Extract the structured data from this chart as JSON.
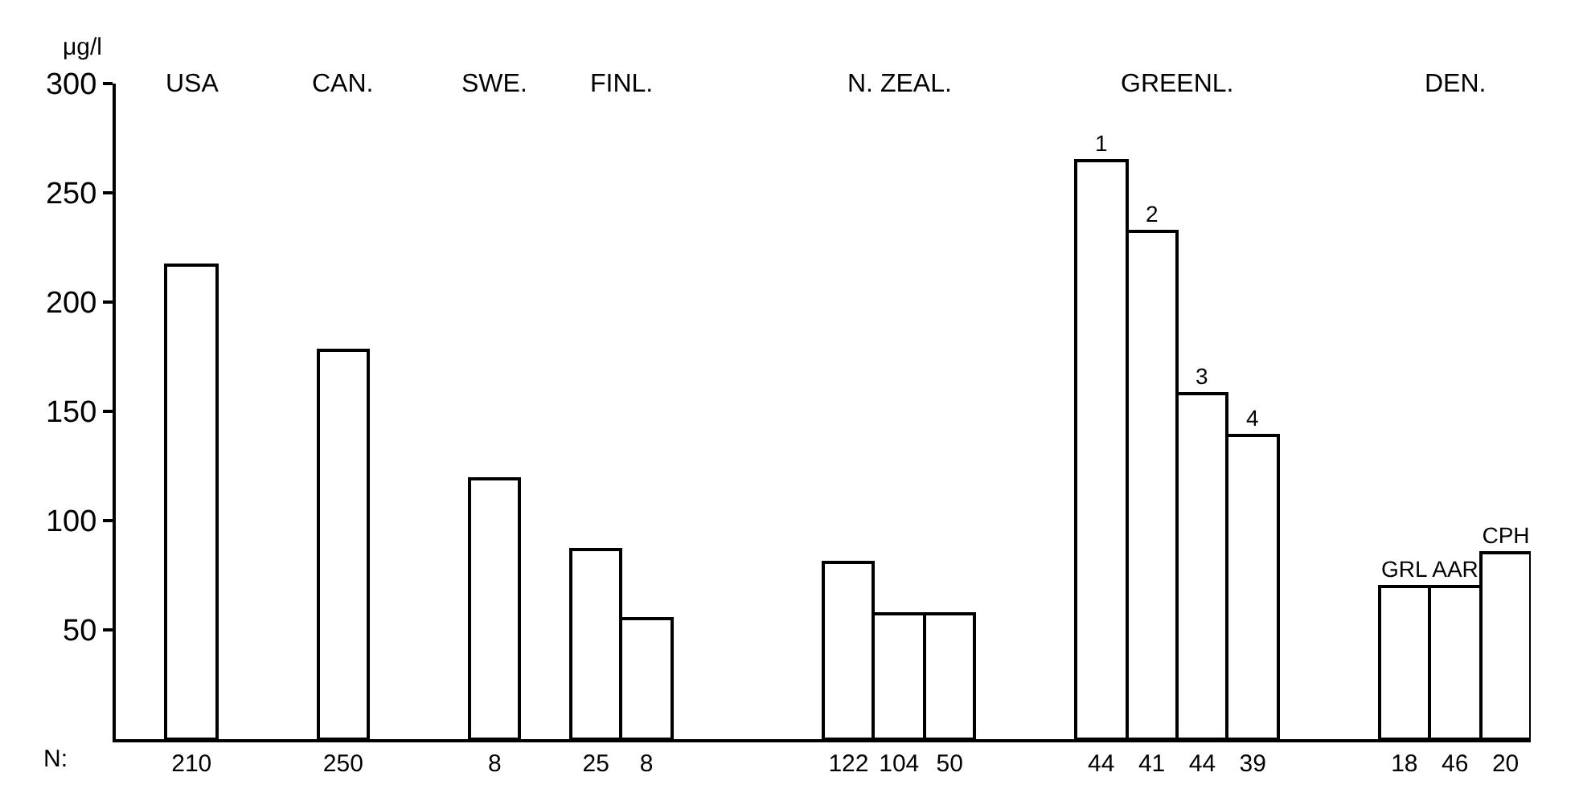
{
  "chart_data": {
    "type": "bar",
    "ylabel": "μg/l",
    "categories": [
      null,
      "210",
      null,
      null,
      "250",
      null,
      null,
      "8",
      null,
      "25",
      "8",
      null,
      null,
      null,
      "122",
      "104",
      "50",
      null,
      null,
      "44",
      "41",
      "44",
      "39",
      null,
      null,
      "18",
      "46",
      "20"
    ],
    "series": [
      {
        "color": "#ffffff",
        "values": [
          null,
          217,
          null,
          null,
          178,
          null,
          null,
          119,
          null,
          87,
          55,
          null,
          null,
          null,
          81,
          57,
          57,
          null,
          null,
          null,
          null,
          null,
          null,
          null,
          null,
          null,
          null,
          null
        ]
      },
      {
        "name": "1",
        "color": "#ffffff",
        "values": [
          null,
          null,
          null,
          null,
          null,
          null,
          null,
          null,
          null,
          null,
          null,
          null,
          null,
          null,
          null,
          null,
          null,
          null,
          null,
          265,
          null,
          null,
          null,
          null,
          null,
          null,
          null,
          null
        ]
      },
      {
        "name": "2",
        "color": "#ffffff",
        "values": [
          null,
          null,
          null,
          null,
          null,
          null,
          null,
          null,
          null,
          null,
          null,
          null,
          null,
          null,
          null,
          null,
          null,
          null,
          null,
          null,
          232,
          null,
          null,
          null,
          null,
          null,
          null,
          null
        ]
      },
      {
        "name": "3",
        "color": "#ffffff",
        "values": [
          null,
          null,
          null,
          null,
          null,
          null,
          null,
          null,
          null,
          null,
          null,
          null,
          null,
          null,
          null,
          null,
          null,
          null,
          null,
          null,
          null,
          158,
          null,
          null,
          null,
          null,
          null,
          null
        ]
      },
      {
        "name": "4",
        "color": "#ffffff",
        "values": [
          null,
          null,
          null,
          null,
          null,
          null,
          null,
          null,
          null,
          null,
          null,
          null,
          null,
          null,
          null,
          null,
          null,
          null,
          null,
          null,
          null,
          null,
          139,
          null,
          null,
          null,
          null,
          null
        ]
      },
      {
        "name": "GRL",
        "color": "#ffffff",
        "values": [
          null,
          null,
          null,
          null,
          null,
          null,
          null,
          null,
          null,
          null,
          null,
          null,
          null,
          null,
          null,
          null,
          null,
          null,
          null,
          null,
          null,
          null,
          null,
          null,
          null,
          70,
          null,
          null
        ]
      },
      {
        "name": "AAR",
        "color": "#ffffff",
        "values": [
          null,
          null,
          null,
          null,
          null,
          null,
          null,
          null,
          null,
          null,
          null,
          null,
          null,
          null,
          null,
          null,
          null,
          null,
          null,
          null,
          null,
          null,
          null,
          null,
          null,
          null,
          70,
          null
        ]
      },
      {
        "name": "CPH",
        "color": "#ffffff",
        "values": [
          null,
          null,
          null,
          null,
          null,
          null,
          null,
          null,
          null,
          null,
          null,
          null,
          null,
          null,
          null,
          null,
          null,
          null,
          null,
          null,
          null,
          null,
          null,
          null,
          null,
          null,
          null,
          85
        ]
      }
    ],
    "ylim": [
      0,
      300
    ],
    "yticks": [
      50,
      100,
      150,
      200,
      250,
      300
    ],
    "annotations": [
      "USA",
      "CAN.",
      "SWE.",
      "FINL.",
      "N. ZEAL.",
      "GREENL.",
      "DEN.",
      "N:"
    ]
  }
}
